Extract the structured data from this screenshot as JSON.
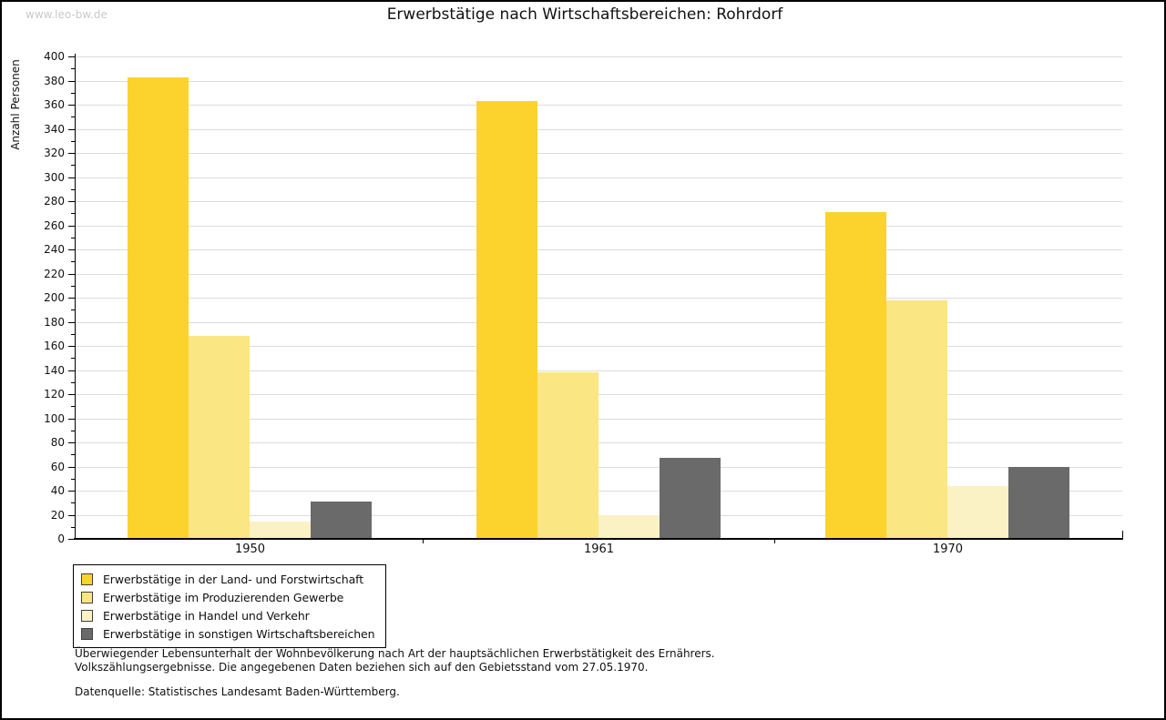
{
  "watermark": "www.leo-bw.de",
  "chart_data": {
    "type": "bar",
    "title": "Erwerbstätige nach Wirtschaftsbereichen: Rohrdorf",
    "ylabel": "Anzahl Personen",
    "xlabel": "",
    "categories": [
      "1950",
      "1961",
      "1970"
    ],
    "series": [
      {
        "name": "Erwerbstätige in der Land- und Forstwirtschaft",
        "color": "#FCD32D",
        "values": [
          383,
          363,
          271
        ]
      },
      {
        "name": "Erwerbstätige im Produzierenden Gewerbe",
        "color": "#FAE682",
        "values": [
          168,
          138,
          198
        ]
      },
      {
        "name": "Erwerbstätige in Handel und Verkehr",
        "color": "#FAF2C5",
        "values": [
          14,
          20,
          44
        ]
      },
      {
        "name": "Erwerbstätige in sonstigen Wirtschaftsbereichen",
        "color": "#6A6A6A",
        "values": [
          31,
          67,
          60
        ]
      }
    ],
    "ylim": [
      0,
      400
    ],
    "ytick_step": 20,
    "grid": true,
    "legend_position": "bottom-left",
    "axis_color": "#000000",
    "grid_color": "#dcdcdc"
  },
  "footer": {
    "line1": "Überwiegender Lebensunterhalt der Wohnbevölkerung nach Art der hauptsächlichen Erwerbstätigkeit des Ernährers.",
    "line2": "Volkszählungsergebnisse. Die angegebenen Daten beziehen sich auf den Gebietsstand vom 27.05.1970.",
    "source": "Datenquelle: Statistisches Landesamt Baden-Württemberg."
  }
}
